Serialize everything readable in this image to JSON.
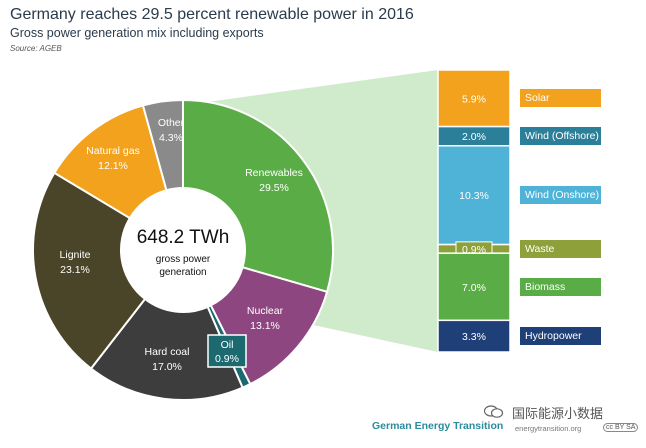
{
  "header": {
    "title": "Germany reaches 29.5 percent renewable power in 2016",
    "subtitle": "Gross power generation mix including exports",
    "source": "Source: AGEB"
  },
  "center": {
    "value": "648.2 TWh",
    "line1": "gross power",
    "line2": "generation"
  },
  "colors": {
    "renewables": "#5aad46",
    "nuclear": "#8e4681",
    "oil": "#1c6a70",
    "hard_coal": "#3d3d3d",
    "lignite": "#4a4428",
    "natural_gas": "#f2a21c",
    "other": "#8a8a8a",
    "solar": "#f2a21c",
    "wind_offshore": "#2b7f99",
    "wind_onshore": "#4fb3d8",
    "waste": "#8da03a",
    "biomass": "#5aad46",
    "hydropower": "#1e3f78"
  },
  "chart_data": [
    {
      "type": "pie",
      "title": "Germany reaches 29.5 percent renewable power in 2016",
      "subtitle": "Gross power generation mix including exports",
      "total_label": "648.2 TWh",
      "slices": [
        {
          "name": "Renewables",
          "value": 29.5,
          "label": "29.5%"
        },
        {
          "name": "Nuclear",
          "value": 13.1,
          "label": "13.1%"
        },
        {
          "name": "Oil",
          "value": 0.9,
          "label": "0.9%"
        },
        {
          "name": "Hard coal",
          "value": 17.0,
          "label": "17.0%"
        },
        {
          "name": "Lignite",
          "value": 23.1,
          "label": "23.1%"
        },
        {
          "name": "Natural gas",
          "value": 12.1,
          "label": "12.1%"
        },
        {
          "name": "Other",
          "value": 4.3,
          "label": "4.3%"
        }
      ]
    },
    {
      "type": "bar",
      "orientation": "stacked-vertical",
      "categories": [
        "Solar",
        "Wind (Offshore)",
        "Wind (Onshore)",
        "Waste",
        "Biomass",
        "Hydropower"
      ],
      "values": [
        5.9,
        2.0,
        10.3,
        0.9,
        7.0,
        3.3
      ],
      "labels": [
        "5.9%",
        "2.0%",
        "10.3%",
        "0.9%",
        "7.0%",
        "3.3%"
      ]
    }
  ],
  "footer": {
    "brand": "German Energy Transition",
    "url": "energytransition.org",
    "license": "cc BY SA",
    "watermark": "国际能源小数据"
  }
}
